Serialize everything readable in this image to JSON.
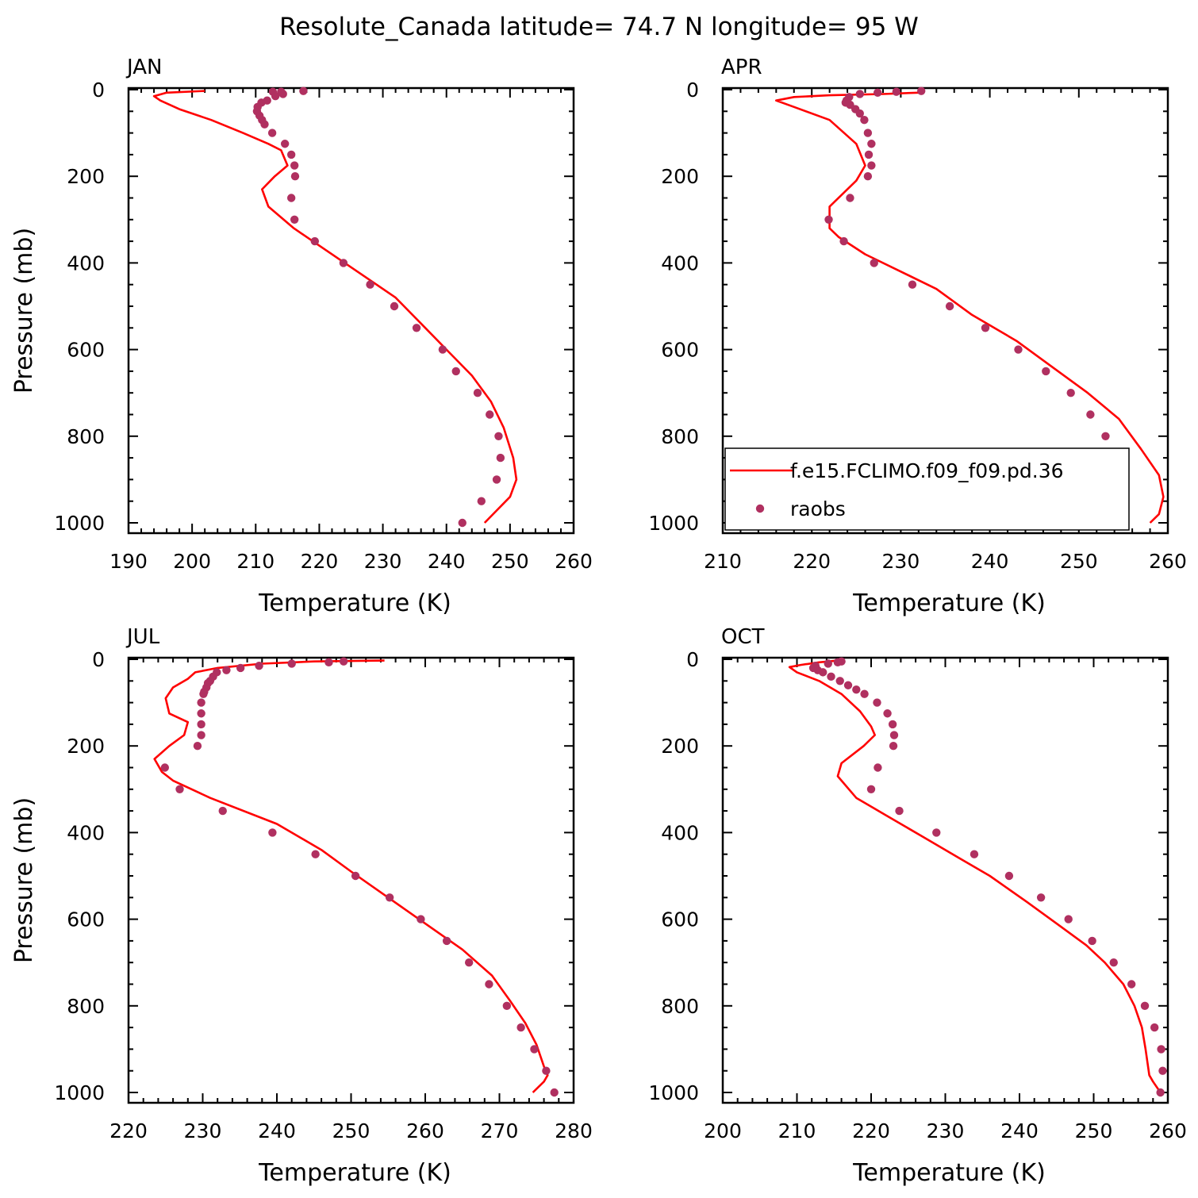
{
  "figure": {
    "title": "Resolute_Canada  latitude= 74.7 N longitude= 95 W"
  },
  "colors": {
    "model_line": "#ff0000",
    "obs_marker": "#b03060",
    "axes": "#000000"
  },
  "legend": {
    "panel": "APR",
    "entries": [
      {
        "label": "f.e15.FCLIMO.f09_f09.pd.36",
        "style": "line"
      },
      {
        "label": "raobs",
        "style": "marker"
      }
    ]
  },
  "chart_data": [
    {
      "type": "line+scatter",
      "panel_label": "JAN",
      "xlabel": "Temperature (K)",
      "ylabel": "Pressure (mb)",
      "xlim": [
        190,
        260
      ],
      "ylim": [
        1000,
        0
      ],
      "xticks": [
        190,
        200,
        210,
        220,
        230,
        240,
        250,
        260
      ],
      "yticks": [
        0,
        200,
        400,
        600,
        800,
        1000
      ],
      "series": [
        {
          "name": "f.e15.FCLIMO.f09_f09.pd.36",
          "kind": "line",
          "points": [
            [
              202,
              3
            ],
            [
              196,
              7
            ],
            [
              194,
              15
            ],
            [
              195,
              25
            ],
            [
              198,
              45
            ],
            [
              203,
              70
            ],
            [
              208,
              100
            ],
            [
              212,
              125
            ],
            [
              214,
              140
            ],
            [
              215,
              175
            ],
            [
              213,
              200
            ],
            [
              211,
              230
            ],
            [
              212,
              270
            ],
            [
              216,
              320
            ],
            [
              220,
              360
            ],
            [
              224,
              400
            ],
            [
              228,
              440
            ],
            [
              232,
              480
            ],
            [
              236,
              540
            ],
            [
              240,
              600
            ],
            [
              244,
              660
            ],
            [
              247,
              720
            ],
            [
              249,
              780
            ],
            [
              250.5,
              850
            ],
            [
              251,
              900
            ],
            [
              250,
              940
            ],
            [
              248,
              970
            ],
            [
              246,
              1000
            ]
          ]
        },
        {
          "name": "raobs",
          "kind": "scatter",
          "points": [
            [
              217.5,
              3
            ],
            [
              214,
              5
            ],
            [
              212.7,
              5
            ],
            [
              214.3,
              10
            ],
            [
              213.1,
              15
            ],
            [
              211.8,
              25
            ],
            [
              210.9,
              30
            ],
            [
              210.3,
              40
            ],
            [
              210.2,
              50
            ],
            [
              210.6,
              60
            ],
            [
              211,
              70
            ],
            [
              211.4,
              80
            ],
            [
              212.6,
              100
            ],
            [
              214.6,
              125
            ],
            [
              215.6,
              150
            ],
            [
              216.1,
              175
            ],
            [
              216.2,
              200
            ],
            [
              215.6,
              250
            ],
            [
              216.1,
              300
            ],
            [
              219.3,
              350
            ],
            [
              223.8,
              400
            ],
            [
              228,
              450
            ],
            [
              231.8,
              500
            ],
            [
              235.3,
              550
            ],
            [
              239.4,
              600
            ],
            [
              241.5,
              650
            ],
            [
              244.9,
              700
            ],
            [
              246.8,
              750
            ],
            [
              248.2,
              800
            ],
            [
              248.5,
              850
            ],
            [
              247.9,
              900
            ],
            [
              245.5,
              950
            ],
            [
              242.5,
              1000
            ]
          ]
        }
      ]
    },
    {
      "type": "line+scatter",
      "panel_label": "APR",
      "xlabel": "Temperature (K)",
      "ylabel": "",
      "xlim": [
        210,
        260
      ],
      "ylim": [
        1000,
        0
      ],
      "xticks": [
        210,
        220,
        230,
        240,
        250,
        260
      ],
      "yticks": [
        0,
        200,
        400,
        600,
        800,
        1000
      ],
      "series": [
        {
          "name": "f.e15.FCLIMO.f09_f09.pd.36",
          "kind": "line",
          "points": [
            [
              232,
              7
            ],
            [
              228,
              10
            ],
            [
              222,
              13
            ],
            [
              218,
              17
            ],
            [
              216,
              25
            ],
            [
              218,
              40
            ],
            [
              222,
              70
            ],
            [
              225,
              125
            ],
            [
              226,
              175
            ],
            [
              225,
              210
            ],
            [
              222,
              270
            ],
            [
              222,
              320
            ],
            [
              223,
              340
            ],
            [
              226,
              380
            ],
            [
              230,
              420
            ],
            [
              234,
              460
            ],
            [
              238,
              520
            ],
            [
              243,
              580
            ],
            [
              247,
              640
            ],
            [
              251,
              700
            ],
            [
              254.5,
              760
            ],
            [
              257,
              830
            ],
            [
              259,
              890
            ],
            [
              259.5,
              940
            ],
            [
              259,
              980
            ],
            [
              258,
              1000
            ]
          ]
        },
        {
          "name": "raobs",
          "kind": "scatter",
          "points": [
            [
              232.3,
              3
            ],
            [
              229.5,
              5
            ],
            [
              227.4,
              7
            ],
            [
              225.4,
              10
            ],
            [
              224.2,
              17
            ],
            [
              223.9,
              25
            ],
            [
              223.8,
              30
            ],
            [
              224.3,
              35
            ],
            [
              224.9,
              45
            ],
            [
              225.4,
              55
            ],
            [
              225.9,
              70
            ],
            [
              226.3,
              100
            ],
            [
              226.7,
              125
            ],
            [
              226.4,
              150
            ],
            [
              226.7,
              175
            ],
            [
              226.3,
              200
            ],
            [
              224.3,
              250
            ],
            [
              221.9,
              300
            ],
            [
              223.6,
              350
            ],
            [
              227,
              400
            ],
            [
              231.3,
              450
            ],
            [
              235.5,
              500
            ],
            [
              239.5,
              550
            ],
            [
              243.2,
              600
            ],
            [
              246.3,
              650
            ],
            [
              249.1,
              700
            ],
            [
              251.3,
              750
            ],
            [
              253,
              800
            ],
            [
              254,
              850
            ],
            [
              254.2,
              900
            ],
            [
              252.9,
              950
            ],
            [
              251,
              1000
            ]
          ]
        }
      ]
    },
    {
      "type": "line+scatter",
      "panel_label": "JUL",
      "xlabel": "Temperature (K)",
      "ylabel": "Pressure (mb)",
      "xlim": [
        220,
        280
      ],
      "ylim": [
        1000,
        0
      ],
      "xticks": [
        220,
        230,
        240,
        250,
        260,
        270,
        280
      ],
      "yticks": [
        0,
        200,
        400,
        600,
        800,
        1000
      ],
      "series": [
        {
          "name": "f.e15.FCLIMO.f09_f09.pd.36",
          "kind": "line",
          "points": [
            [
              254.5,
              3
            ],
            [
              245,
              5
            ],
            [
              238,
              10
            ],
            [
              232,
              20
            ],
            [
              229,
              30
            ],
            [
              228,
              45
            ],
            [
              226,
              65
            ],
            [
              225,
              90
            ],
            [
              225.5,
              125
            ],
            [
              228,
              145
            ],
            [
              227.5,
              175
            ],
            [
              225.5,
              200
            ],
            [
              223.5,
              230
            ],
            [
              224.5,
              260
            ],
            [
              226,
              280
            ],
            [
              231,
              320
            ],
            [
              240,
              380
            ],
            [
              246,
              440
            ],
            [
              250,
              490
            ],
            [
              255,
              550
            ],
            [
              260,
              610
            ],
            [
              265,
              670
            ],
            [
              269,
              730
            ],
            [
              271.5,
              790
            ],
            [
              273.5,
              840
            ],
            [
              275,
              890
            ],
            [
              276,
              940
            ],
            [
              276.5,
              960
            ],
            [
              276,
              975
            ],
            [
              274.5,
              1000
            ]
          ]
        },
        {
          "name": "raobs",
          "kind": "scatter",
          "points": [
            [
              249,
              5
            ],
            [
              247,
              7
            ],
            [
              242,
              10
            ],
            [
              237.6,
              15
            ],
            [
              235.1,
              20
            ],
            [
              233.2,
              25
            ],
            [
              231.9,
              30
            ],
            [
              231.4,
              40
            ],
            [
              231,
              50
            ],
            [
              230.7,
              55
            ],
            [
              230.5,
              65
            ],
            [
              230.2,
              75
            ],
            [
              230.1,
              80
            ],
            [
              229.8,
              100
            ],
            [
              229.8,
              125
            ],
            [
              229.8,
              150
            ],
            [
              229.8,
              175
            ],
            [
              229.3,
              200
            ],
            [
              224.9,
              250
            ],
            [
              226.9,
              300
            ],
            [
              232.7,
              350
            ],
            [
              239.4,
              400
            ],
            [
              245.2,
              450
            ],
            [
              250.6,
              500
            ],
            [
              255.2,
              550
            ],
            [
              259.4,
              600
            ],
            [
              262.9,
              650
            ],
            [
              265.9,
              700
            ],
            [
              268.6,
              750
            ],
            [
              271,
              800
            ],
            [
              272.9,
              850
            ],
            [
              274.7,
              900
            ],
            [
              276.3,
              950
            ],
            [
              277.4,
              1000
            ]
          ]
        }
      ]
    },
    {
      "type": "line+scatter",
      "panel_label": "OCT",
      "xlabel": "Temperature (K)",
      "ylabel": "",
      "xlim": [
        200,
        260
      ],
      "ylim": [
        1000,
        0
      ],
      "xticks": [
        200,
        210,
        220,
        230,
        240,
        250,
        260
      ],
      "yticks": [
        0,
        200,
        400,
        600,
        800,
        1000
      ],
      "series": [
        {
          "name": "f.e15.FCLIMO.f09_f09.pd.36",
          "kind": "line",
          "points": [
            [
              215.5,
              3
            ],
            [
              213,
              7
            ],
            [
              210.5,
              13
            ],
            [
              209,
              18
            ],
            [
              210,
              30
            ],
            [
              213,
              50
            ],
            [
              216,
              80
            ],
            [
              218.5,
              120
            ],
            [
              220,
              155
            ],
            [
              220.5,
              175
            ],
            [
              219,
              200
            ],
            [
              216,
              240
            ],
            [
              215.5,
              270
            ],
            [
              218,
              320
            ],
            [
              222,
              360
            ],
            [
              227,
              410
            ],
            [
              232,
              460
            ],
            [
              236,
              500
            ],
            [
              241,
              560
            ],
            [
              245,
              610
            ],
            [
              249,
              660
            ],
            [
              251.5,
              700
            ],
            [
              254,
              750
            ],
            [
              255.5,
              800
            ],
            [
              256.5,
              850
            ],
            [
              257,
              900
            ],
            [
              257.5,
              960
            ],
            [
              258,
              975
            ],
            [
              259,
              1000
            ]
          ]
        },
        {
          "name": "raobs",
          "kind": "scatter",
          "points": [
            [
              216,
              5
            ],
            [
              215.5,
              7
            ],
            [
              214.2,
              10
            ],
            [
              212.5,
              15
            ],
            [
              212.2,
              20
            ],
            [
              212.8,
              25
            ],
            [
              213.5,
              30
            ],
            [
              214.6,
              40
            ],
            [
              215.8,
              50
            ],
            [
              216.9,
              60
            ],
            [
              218,
              70
            ],
            [
              219.1,
              80
            ],
            [
              220.8,
              100
            ],
            [
              222.2,
              125
            ],
            [
              222.9,
              150
            ],
            [
              223.1,
              175
            ],
            [
              223,
              200
            ],
            [
              220.9,
              250
            ],
            [
              220,
              300
            ],
            [
              223.8,
              350
            ],
            [
              228.8,
              400
            ],
            [
              233.9,
              450
            ],
            [
              238.6,
              500
            ],
            [
              242.9,
              550
            ],
            [
              246.6,
              600
            ],
            [
              249.8,
              650
            ],
            [
              252.7,
              700
            ],
            [
              255.1,
              750
            ],
            [
              256.9,
              800
            ],
            [
              258.2,
              850
            ],
            [
              259.1,
              900
            ],
            [
              259.3,
              950
            ],
            [
              259,
              1000
            ]
          ]
        }
      ]
    }
  ]
}
